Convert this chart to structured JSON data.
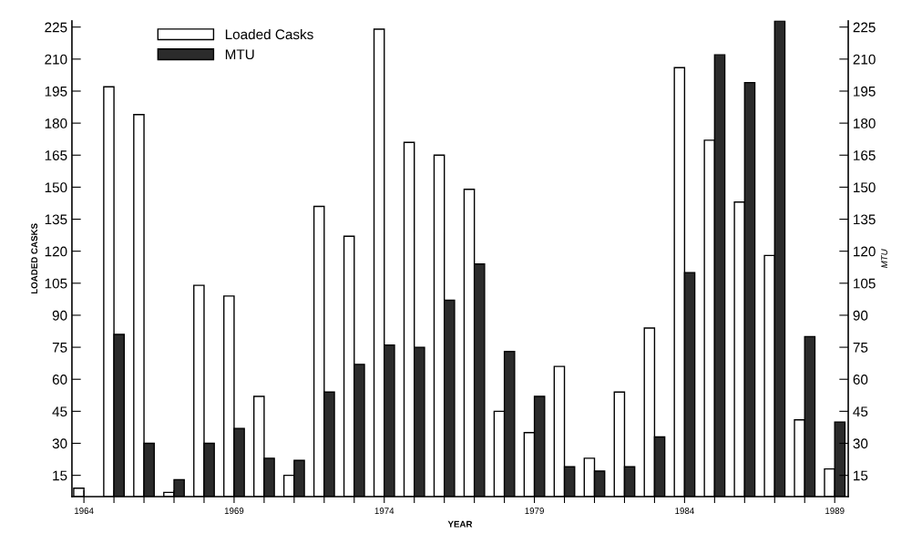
{
  "chart_data": {
    "type": "bar",
    "xlabel": "YEAR",
    "ylabel": "LOADED CASKS",
    "y2label": "MTU",
    "x": [
      1964,
      1965,
      1966,
      1967,
      1968,
      1969,
      1970,
      1971,
      1972,
      1973,
      1974,
      1975,
      1976,
      1977,
      1978,
      1979,
      1980,
      1981,
      1982,
      1983,
      1984,
      1985,
      1986,
      1987,
      1988,
      1989
    ],
    "series": [
      {
        "name": "Loaded Casks",
        "color": "#ffffff",
        "values": [
          9,
          197,
          184,
          7,
          104,
          99,
          52,
          15,
          141,
          127,
          224,
          171,
          165,
          149,
          45,
          35,
          66,
          23,
          54,
          84,
          206,
          172,
          143,
          118,
          41,
          18
        ]
      },
      {
        "name": "MTU",
        "color": "#2b2b2b",
        "axis": "y2",
        "values": [
          null,
          81,
          30,
          13,
          30,
          37,
          23,
          22,
          54,
          67,
          76,
          75,
          97,
          114,
          73,
          52,
          19,
          17,
          19,
          33,
          110,
          212,
          199,
          228,
          80,
          40
        ]
      }
    ],
    "xlim": [
      1963.6,
      1989.45
    ],
    "xticks": [
      1964,
      {
        "value": 1965,
        "label": null
      },
      {
        "value": 1966,
        "label": null
      },
      {
        "value": 1967,
        "label": null
      },
      {
        "value": 1968,
        "label": null
      },
      1969,
      {
        "value": 1970,
        "label": null
      },
      {
        "value": 1971,
        "label": null
      },
      {
        "value": 1972,
        "label": null
      },
      {
        "value": 1973,
        "label": null
      },
      1974,
      {
        "value": 1975,
        "label": null
      },
      {
        "value": 1976,
        "label": null
      },
      {
        "value": 1977,
        "label": null
      },
      {
        "value": 1978,
        "label": null
      },
      1979,
      {
        "value": 1980,
        "label": null
      },
      {
        "value": 1981,
        "label": null
      },
      {
        "value": 1982,
        "label": null
      },
      {
        "value": 1983,
        "label": null
      },
      1984,
      {
        "value": 1985,
        "label": null
      },
      {
        "value": 1986,
        "label": null
      },
      {
        "value": 1987,
        "label": null
      },
      {
        "value": 1988,
        "label": null
      },
      1989
    ],
    "ylim": [
      5,
      228
    ],
    "yticks": [
      15,
      30,
      45,
      60,
      75,
      90,
      105,
      120,
      135,
      150,
      165,
      180,
      195,
      210,
      225
    ],
    "y2lim": [
      5,
      228
    ],
    "y2ticks": [
      15,
      30,
      45,
      60,
      75,
      90,
      105,
      120,
      135,
      150,
      165,
      180,
      195,
      210,
      225
    ],
    "grid": false,
    "legend": "top left"
  }
}
